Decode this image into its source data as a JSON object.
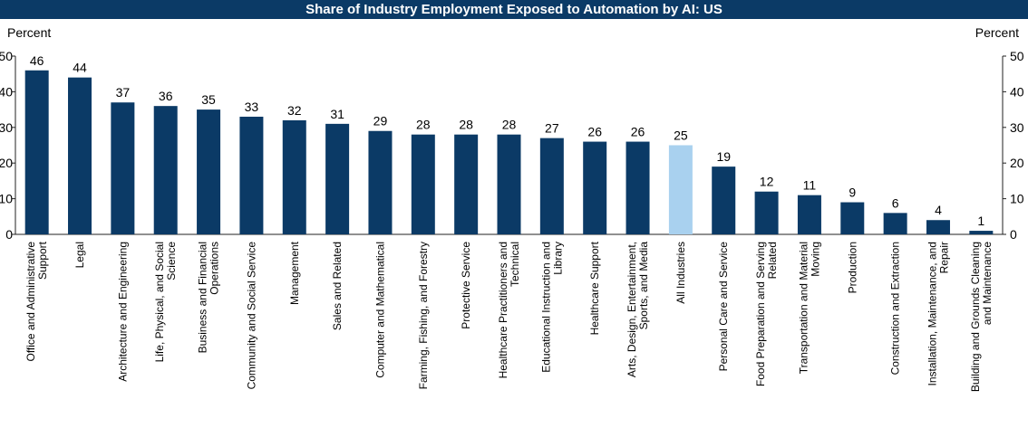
{
  "chart_data": {
    "type": "bar",
    "title": "Share of Industry Employment Exposed to Automation by AI: US",
    "ylabel_left": "Percent",
    "ylabel_right": "Percent",
    "ylim": [
      0,
      50
    ],
    "yticks": [
      0,
      10,
      20,
      30,
      40,
      50
    ],
    "grid": false,
    "colors": {
      "bar": "#0b3a66",
      "highlight": "#a9d1ef",
      "axis": "#222222",
      "title_bg": "#0b3a66"
    },
    "highlight_category": "All Industries",
    "categories": [
      [
        "Office and Administrative",
        "Support"
      ],
      [
        "Legal"
      ],
      [
        "Architecture and Engineering"
      ],
      [
        "Life, Physical, and Social",
        "Science"
      ],
      [
        "Business and Financial",
        "Operations"
      ],
      [
        "Community and Social Service"
      ],
      [
        "Management"
      ],
      [
        "Sales and Related"
      ],
      [
        "Computer and Mathematical"
      ],
      [
        "Farming, Fishing, and Forestry"
      ],
      [
        "Protective Service"
      ],
      [
        "Healthcare Practitioners and",
        "Technical"
      ],
      [
        "Educational Instruction and",
        "Library"
      ],
      [
        "Healthcare Support"
      ],
      [
        "Arts, Design, Entertainment,",
        "Sports, and Media"
      ],
      [
        "All Industries"
      ],
      [
        "Personal Care and Service"
      ],
      [
        "Food Preparation and Serving",
        "Related"
      ],
      [
        "Transportation and Material",
        "Moving"
      ],
      [
        "Production"
      ],
      [
        "Construction and Extraction"
      ],
      [
        "Installation, Maintenance, and",
        "Repair"
      ],
      [
        "Building and Grounds Cleaning",
        "and Maintenance"
      ]
    ],
    "values": [
      46,
      44,
      37,
      36,
      35,
      33,
      32,
      31,
      29,
      28,
      28,
      28,
      27,
      26,
      26,
      25,
      19,
      12,
      11,
      9,
      6,
      4,
      1
    ]
  }
}
